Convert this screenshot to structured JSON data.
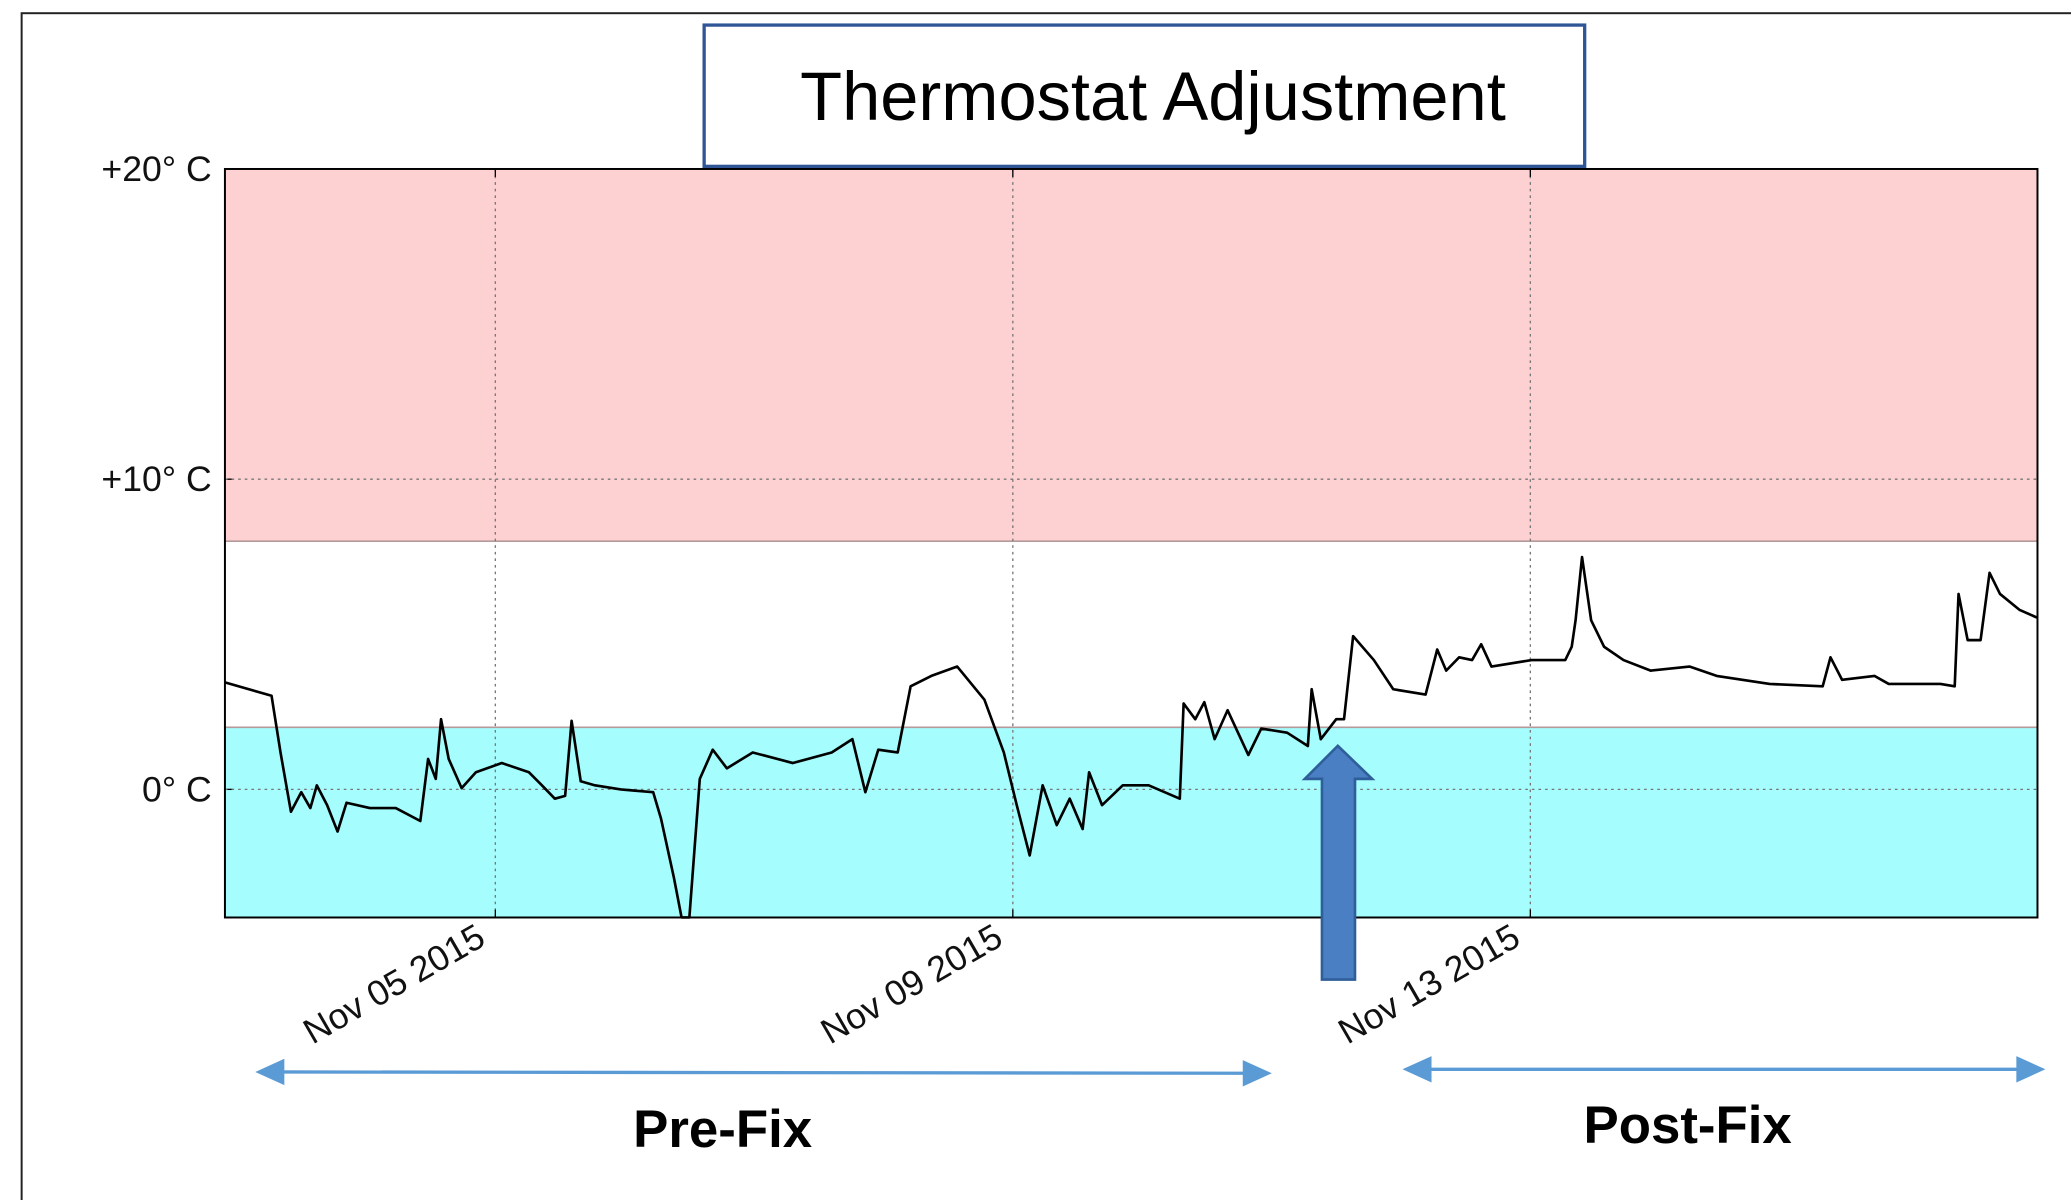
{
  "chart_data": {
    "type": "line",
    "title": "Thermostat Adjustment",
    "x": [
      2.91,
      3.27,
      3.34,
      3.42,
      3.5,
      3.57,
      3.62,
      3.7,
      3.78,
      3.85,
      4.03,
      4.23,
      4.42,
      4.48,
      4.54,
      4.58,
      4.64,
      4.74,
      4.85,
      5.05,
      5.26,
      5.36,
      5.46,
      5.54,
      5.59,
      5.66,
      5.77,
      5.97,
      6.22,
      6.28,
      6.38,
      6.44,
      6.5,
      6.58,
      6.68,
      6.79,
      6.99,
      7.3,
      7.6,
      7.76,
      7.86,
      7.96,
      8.11,
      8.21,
      8.37,
      8.57,
      8.78,
      8.93,
      9.03,
      9.13,
      9.23,
      9.34,
      9.44,
      9.54,
      9.59,
      9.69,
      9.85,
      10.05,
      10.29,
      10.32,
      10.41,
      10.48,
      10.56,
      10.66,
      10.82,
      10.92,
      11.12,
      11.28,
      11.31,
      11.38,
      11.5,
      11.56,
      11.63,
      11.79,
      11.94,
      12.19,
      12.28,
      12.35,
      12.45,
      12.55,
      12.62,
      12.7,
      13.01,
      13.27,
      13.32,
      13.35,
      13.4,
      13.47,
      13.57,
      13.72,
      13.93,
      14.23,
      14.44,
      14.85,
      15.26,
      15.32,
      15.41,
      15.66,
      15.77,
      16.17,
      16.28,
      16.31,
      16.38,
      16.48,
      16.55,
      16.63,
      16.78,
      16.92
    ],
    "series": [
      {
        "color": "#000000",
        "values": [
          3.45,
          3.02,
          1.19,
          -0.72,
          -0.09,
          -0.6,
          0.13,
          -0.51,
          -1.36,
          -0.43,
          -0.6,
          -0.6,
          -1.02,
          0.98,
          0.34,
          2.26,
          0.98,
          0.04,
          0.55,
          0.85,
          0.55,
          0.13,
          -0.3,
          -0.21,
          2.21,
          0.26,
          0.13,
          0,
          -0.09,
          -0.94,
          -2.85,
          -4.13,
          -4.13,
          0.34,
          1.28,
          0.68,
          1.19,
          0.85,
          1.19,
          1.62,
          -0.09,
          1.28,
          1.19,
          3.32,
          3.66,
          3.96,
          2.89,
          1.19,
          -0.51,
          -2.13,
          0.13,
          -1.15,
          -0.3,
          -1.28,
          0.55,
          -0.51,
          0.13,
          0.13,
          -0.3,
          2.77,
          2.26,
          2.81,
          1.62,
          2.55,
          1.11,
          1.96,
          1.83,
          1.4,
          3.23,
          1.62,
          2.26,
          2.26,
          4.94,
          4.17,
          3.23,
          3.06,
          4.51,
          3.83,
          4.26,
          4.17,
          4.68,
          3.96,
          4.17,
          4.17,
          4.6,
          5.45,
          7.49,
          5.45,
          4.6,
          4.17,
          3.83,
          3.96,
          3.66,
          3.4,
          3.32,
          4.26,
          3.53,
          3.66,
          3.4,
          3.4,
          3.32,
          6.3,
          4.81,
          4.81,
          6.98,
          6.3,
          5.79,
          5.53
        ]
      }
    ],
    "xlim": [
      2.91,
      16.92
    ],
    "xticks": [
      {
        "value": 5,
        "label": "Nov 05 2015"
      },
      {
        "value": 9,
        "label": "Nov 09 2015"
      },
      {
        "value": 13,
        "label": "Nov 13 2015"
      }
    ],
    "ylim": [
      -4.13,
      20
    ],
    "yticks": [
      {
        "value": 20,
        "label": "+20° C"
      },
      {
        "value": 10,
        "label": "+10° C"
      },
      {
        "value": 0,
        "label": "0° C"
      }
    ],
    "grid": true,
    "bands": [
      {
        "from": 8,
        "to": 20,
        "color": "#fdd0d2"
      },
      {
        "from": -4.13,
        "to": 2,
        "color": "#a5fdfd"
      }
    ],
    "annotations": [
      {
        "text": "Pre-Fix"
      },
      {
        "text": "Post-Fix"
      }
    ]
  }
}
